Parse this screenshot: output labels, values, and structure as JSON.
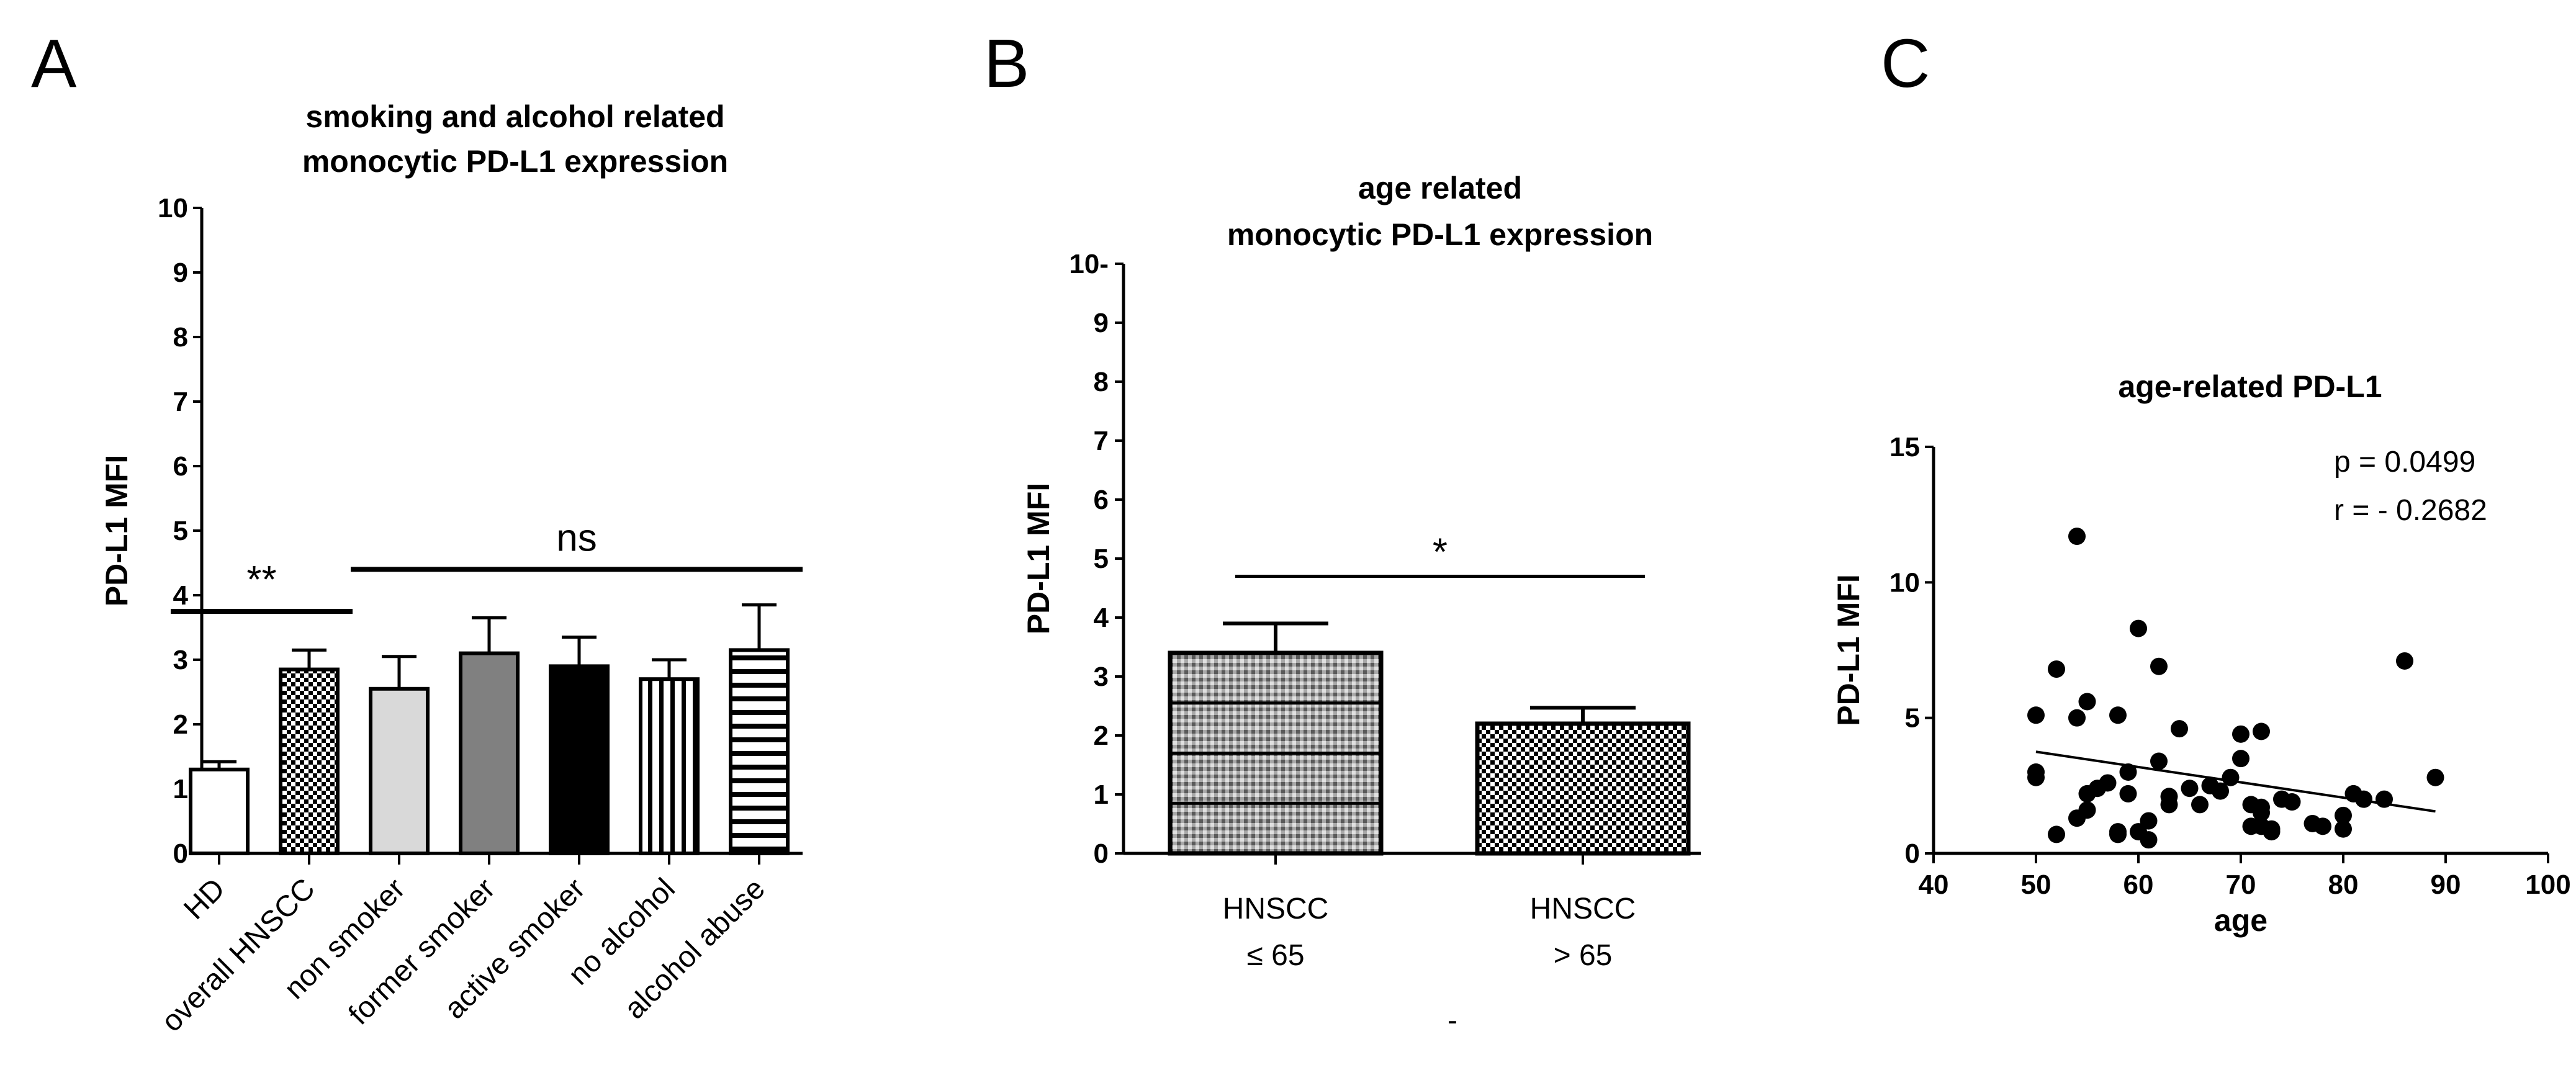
{
  "chart_data": [
    {
      "panel": "A",
      "type": "bar",
      "title": [
        "smoking and alcohol related",
        "monocytic PD-L1 expression"
      ],
      "ylabel": "PD-L1 MFI",
      "xlabel": "",
      "ylim": [
        0,
        10
      ],
      "yticks": [
        0,
        1,
        2,
        3,
        4,
        5,
        6,
        7,
        8,
        9,
        10
      ],
      "categories": [
        "HD",
        "overall HNSCC",
        "non smoker",
        "former smoker",
        "active smoker",
        "no alcohol",
        "alcohol abuse"
      ],
      "values": [
        1.3,
        2.85,
        2.55,
        3.1,
        2.9,
        2.7,
        3.15
      ],
      "errors": [
        0.12,
        0.3,
        0.5,
        0.55,
        0.45,
        0.3,
        0.7
      ],
      "fills": [
        "white",
        "checker",
        "lightgray",
        "gray",
        "black",
        "vstripes",
        "hstripes"
      ],
      "annotations": [
        {
          "text": "**",
          "from": 0,
          "to": 1,
          "y": 3.75
        },
        {
          "text": "ns",
          "from": 2,
          "to": 6,
          "y": 4.4
        }
      ]
    },
    {
      "panel": "B",
      "type": "bar",
      "title": [
        "age related",
        "monocytic PD-L1 expression"
      ],
      "ylabel": "PD-L1 MFI",
      "xlabel": "-",
      "ylim": [
        0,
        10
      ],
      "yticks": [
        0,
        1,
        2,
        3,
        4,
        5,
        6,
        7,
        8,
        9,
        10
      ],
      "top_tick_suffix": "-",
      "categories": [
        [
          "HNSCC",
          "≤ 65"
        ],
        [
          "HNSCC",
          "> 65"
        ]
      ],
      "values": [
        3.4,
        2.2
      ],
      "errors": [
        0.5,
        0.27
      ],
      "fills": [
        "grid",
        "checker"
      ],
      "annotations": [
        {
          "text": "*",
          "from": 0,
          "to": 1,
          "y": 4.7
        }
      ]
    },
    {
      "panel": "C",
      "type": "scatter",
      "title": "age-related PD-L1",
      "xlabel": "age",
      "ylabel": "PD-L1 MFI",
      "xlim": [
        40,
        100
      ],
      "ylim": [
        0,
        15
      ],
      "xticks": [
        40,
        50,
        60,
        70,
        80,
        90,
        100
      ],
      "yticks": [
        0,
        5,
        10,
        15
      ],
      "stats": [
        "p = 0.0499",
        "r = - 0.2682"
      ],
      "regression": {
        "x": [
          50,
          89
        ],
        "y": [
          3.75,
          1.55
        ]
      },
      "points": [
        [
          50,
          5.1
        ],
        [
          50,
          3.0
        ],
        [
          50,
          2.8
        ],
        [
          52,
          6.8
        ],
        [
          52,
          0.7
        ],
        [
          54,
          11.7
        ],
        [
          54,
          5.0
        ],
        [
          54,
          1.3
        ],
        [
          55,
          5.6
        ],
        [
          55,
          2.2
        ],
        [
          55,
          1.6
        ],
        [
          56,
          2.4
        ],
        [
          57,
          2.6
        ],
        [
          58,
          5.1
        ],
        [
          58,
          0.8
        ],
        [
          58,
          0.7
        ],
        [
          59,
          3.0
        ],
        [
          59,
          2.2
        ],
        [
          60,
          8.3
        ],
        [
          60,
          0.8
        ],
        [
          61,
          1.2
        ],
        [
          61,
          0.5
        ],
        [
          62,
          6.9
        ],
        [
          62,
          3.4
        ],
        [
          63,
          2.1
        ],
        [
          63,
          1.8
        ],
        [
          64,
          4.6
        ],
        [
          65,
          2.4
        ],
        [
          66,
          1.8
        ],
        [
          67,
          2.5
        ],
        [
          68,
          2.3
        ],
        [
          69,
          2.8
        ],
        [
          70,
          4.4
        ],
        [
          70,
          3.5
        ],
        [
          71,
          1.8
        ],
        [
          71,
          1.0
        ],
        [
          72,
          4.5
        ],
        [
          72,
          1.7
        ],
        [
          72,
          1.5
        ],
        [
          72,
          1.0
        ],
        [
          73,
          0.9
        ],
        [
          73,
          0.8
        ],
        [
          74,
          2.0
        ],
        [
          75,
          1.9
        ],
        [
          77,
          1.1
        ],
        [
          78,
          1.0
        ],
        [
          80,
          1.4
        ],
        [
          80,
          0.9
        ],
        [
          81,
          2.2
        ],
        [
          82,
          2.0
        ],
        [
          84,
          2.0
        ],
        [
          86,
          7.1
        ],
        [
          89,
          2.8
        ]
      ]
    }
  ],
  "panels": {
    "a_letter": "A",
    "b_letter": "B",
    "c_letter": "C"
  }
}
